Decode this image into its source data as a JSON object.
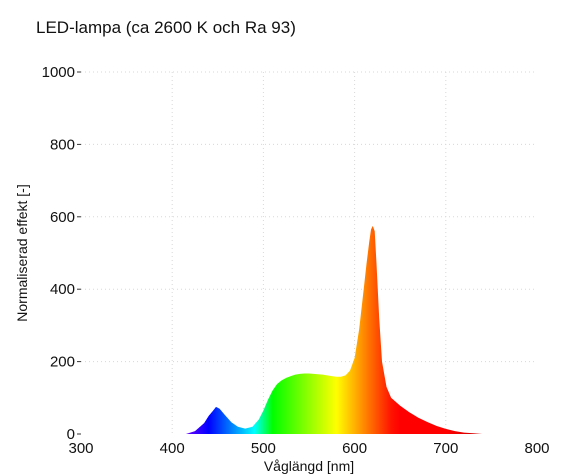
{
  "chart_data": {
    "type": "area",
    "title": "LED-lampa (ca 2600 K och Ra 93)",
    "xlabel": "Våglängd [nm]",
    "ylabel": "Normaliserad effekt [-]",
    "xlim": [
      300,
      800
    ],
    "ylim": [
      0,
      1000
    ],
    "x_ticks": [
      "300",
      "400",
      "500",
      "600",
      "700",
      "800"
    ],
    "y_ticks": [
      "0",
      "200",
      "400",
      "600",
      "800",
      "1000"
    ],
    "grid": true,
    "fill": "visible-spectrum gradient",
    "series": [
      {
        "x": [
          415,
          425,
          435,
          440,
          445,
          448,
          452,
          458,
          465,
          472,
          480,
          488,
          495,
          500,
          505,
          510,
          515,
          520,
          525,
          530,
          535,
          540,
          545,
          550,
          555,
          560,
          565,
          570,
          575,
          580,
          585,
          590,
          595,
          600,
          605,
          610,
          613,
          616,
          618,
          620,
          622,
          624,
          627,
          630,
          635,
          640,
          650,
          660,
          670,
          680,
          690,
          700,
          710,
          720,
          730,
          740
        ],
        "values": [
          0,
          8,
          30,
          50,
          65,
          75,
          70,
          52,
          32,
          20,
          15,
          20,
          40,
          65,
          95,
          120,
          138,
          148,
          155,
          160,
          164,
          166,
          167,
          167,
          166,
          165,
          164,
          162,
          160,
          158,
          158,
          162,
          175,
          210,
          290,
          400,
          470,
          530,
          565,
          575,
          560,
          470,
          320,
          200,
          130,
          100,
          78,
          60,
          45,
          33,
          22,
          14,
          8,
          4,
          2,
          0
        ]
      }
    ]
  }
}
